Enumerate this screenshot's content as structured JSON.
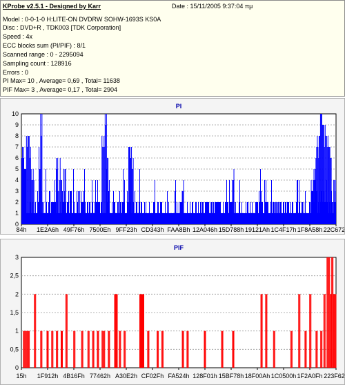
{
  "info": {
    "title": "KProbe v2.5.1 - Designed by Karr",
    "date": "Date : 15/11/2005 9:37:04 πμ",
    "lines": [
      "Model : 0-0-1-0 H:LITE-ON DVDRW SOHW-1693S KS0A",
      "Disc : DVD+R ,  TDK003 [TDK Corporation]",
      "Speed : 4x",
      "ECC blocks sum (PI/PIF) : 8/1",
      "Scanned range : 0 - 2295094",
      "Sampling count : 128916",
      "Errors : 0",
      "PI Max= 10 , Average= 0,69 , Total= 11638",
      "PIF Max= 3 , Average= 0,17 , Total= 2904"
    ]
  },
  "chart_data": [
    {
      "type": "bar",
      "title": "PI",
      "color": "#0000ff",
      "ylim": [
        0,
        10
      ],
      "yticks": [
        "0",
        "1",
        "2",
        "3",
        "4",
        "5",
        "6",
        "7",
        "8",
        "9",
        "10"
      ],
      "xticks": [
        "84h",
        "1E2A6h",
        "49F76h",
        "7500Eh",
        "9FF23h",
        "CD343h",
        "FAA8Bh",
        "12A046h",
        "15D788h",
        "19121Ah",
        "1C4F17h",
        "1F8A58h",
        "22C672h"
      ],
      "grid": true,
      "baseline": [
        [
          0,
          1,
          2
        ],
        [
          0.05,
          1,
          3
        ],
        [
          0.12,
          1,
          3
        ],
        [
          0.2,
          1,
          2
        ],
        [
          0.3,
          1,
          2
        ],
        [
          0.45,
          1,
          2
        ],
        [
          0.6,
          1,
          2
        ],
        [
          0.75,
          1,
          2
        ],
        [
          0.9,
          1,
          3
        ],
        [
          1.0,
          1,
          3
        ]
      ],
      "bursts": [
        [
          0.0,
          0.015,
          7
        ],
        [
          0.015,
          0.03,
          8
        ],
        [
          0.03,
          0.04,
          5
        ],
        [
          0.055,
          0.06,
          7
        ],
        [
          0.06,
          0.065,
          10
        ],
        [
          0.11,
          0.115,
          6
        ],
        [
          0.12,
          0.125,
          6
        ],
        [
          0.135,
          0.14,
          5
        ],
        [
          0.255,
          0.265,
          8
        ],
        [
          0.265,
          0.27,
          10
        ],
        [
          0.27,
          0.275,
          7
        ],
        [
          0.34,
          0.35,
          8
        ],
        [
          0.35,
          0.355,
          7
        ],
        [
          0.51,
          0.515,
          5
        ],
        [
          0.67,
          0.675,
          6
        ],
        [
          0.92,
          0.935,
          5
        ],
        [
          0.935,
          0.945,
          8
        ],
        [
          0.945,
          0.96,
          10
        ],
        [
          0.96,
          0.975,
          9
        ],
        [
          0.975,
          0.985,
          8
        ],
        [
          0.985,
          1.0,
          4
        ]
      ]
    },
    {
      "type": "bar",
      "title": "PIF",
      "color": "#ff0000",
      "ylim": [
        0,
        3
      ],
      "yticks": [
        "0",
        "0,5",
        "1",
        "1,5",
        "2",
        "2,5",
        "3"
      ],
      "xticks": [
        "15h",
        "1F912h",
        "4B16Fh",
        "77462h",
        "A30E2h",
        "CF02Fh",
        "FA524h",
        "128F01h",
        "15BF78h",
        "18F00Ah",
        "1C0500h",
        "1F2A0Fh",
        "223F62h"
      ],
      "grid": true,
      "bars": [
        [
          0.005,
          0.02,
          1
        ],
        [
          0.02,
          0.025,
          1
        ],
        [
          0.04,
          0.045,
          2
        ],
        [
          0.06,
          0.065,
          1
        ],
        [
          0.08,
          0.085,
          1
        ],
        [
          0.095,
          0.1,
          1
        ],
        [
          0.11,
          0.115,
          1
        ],
        [
          0.125,
          0.13,
          1
        ],
        [
          0.14,
          0.145,
          2
        ],
        [
          0.165,
          0.17,
          1
        ],
        [
          0.19,
          0.195,
          1
        ],
        [
          0.21,
          0.215,
          1
        ],
        [
          0.225,
          0.23,
          1
        ],
        [
          0.24,
          0.245,
          1
        ],
        [
          0.255,
          0.265,
          1
        ],
        [
          0.275,
          0.28,
          1
        ],
        [
          0.295,
          0.305,
          2
        ],
        [
          0.31,
          0.315,
          1
        ],
        [
          0.325,
          0.33,
          1
        ],
        [
          0.375,
          0.39,
          2
        ],
        [
          0.4,
          0.405,
          1
        ],
        [
          0.43,
          0.435,
          1
        ],
        [
          0.445,
          0.45,
          1
        ],
        [
          0.51,
          0.515,
          1
        ],
        [
          0.525,
          0.53,
          1
        ],
        [
          0.58,
          0.585,
          1
        ],
        [
          0.635,
          0.64,
          1
        ],
        [
          0.67,
          0.675,
          1
        ],
        [
          0.76,
          0.765,
          2
        ],
        [
          0.775,
          0.78,
          2
        ],
        [
          0.8,
          0.805,
          1
        ],
        [
          0.855,
          0.86,
          1
        ],
        [
          0.88,
          0.885,
          2
        ],
        [
          0.9,
          0.905,
          1
        ],
        [
          0.915,
          0.92,
          2
        ],
        [
          0.935,
          0.94,
          1
        ],
        [
          0.95,
          0.955,
          1
        ],
        [
          0.96,
          0.965,
          2
        ],
        [
          0.97,
          0.98,
          3
        ],
        [
          0.98,
          0.985,
          2
        ],
        [
          0.985,
          0.99,
          3
        ],
        [
          0.99,
          1.0,
          2
        ]
      ]
    }
  ]
}
